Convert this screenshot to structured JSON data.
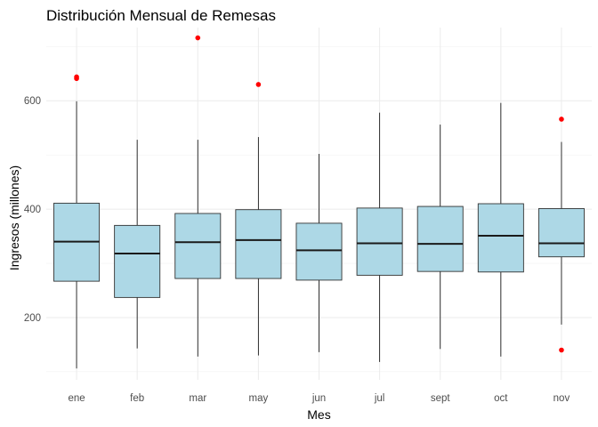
{
  "chart_data": {
    "type": "boxplot",
    "title": "Distribución Mensual de Remesas",
    "xlabel": "Mes",
    "ylabel": "Ingresos (millones)",
    "categories": [
      "ene",
      "feb",
      "mar",
      "may",
      "jun",
      "jul",
      "sept",
      "oct",
      "nov"
    ],
    "ylim": [
      85,
      735
    ],
    "yticks": [
      200,
      400,
      600
    ],
    "grid": true,
    "box_fill": "#ADD8E6",
    "outlier_color": "#FF0000",
    "boxes": [
      {
        "label": "ene",
        "whisker_low": 106,
        "q1": 267,
        "median": 340,
        "q3": 411,
        "whisker_high": 599,
        "outliers": [
          641,
          644
        ]
      },
      {
        "label": "feb",
        "whisker_low": 143,
        "q1": 237,
        "median": 318,
        "q3": 370,
        "whisker_high": 528,
        "outliers": []
      },
      {
        "label": "mar",
        "whisker_low": 128,
        "q1": 272,
        "median": 339,
        "q3": 392,
        "whisker_high": 528,
        "outliers": [
          716
        ]
      },
      {
        "label": "may",
        "whisker_low": 130,
        "q1": 272,
        "median": 343,
        "q3": 399,
        "whisker_high": 533,
        "outliers": [
          630
        ]
      },
      {
        "label": "jun",
        "whisker_low": 136,
        "q1": 269,
        "median": 324,
        "q3": 374,
        "whisker_high": 502,
        "outliers": []
      },
      {
        "label": "jul",
        "whisker_low": 118,
        "q1": 278,
        "median": 337,
        "q3": 402,
        "whisker_high": 578,
        "outliers": []
      },
      {
        "label": "sept",
        "whisker_low": 142,
        "q1": 285,
        "median": 336,
        "q3": 405,
        "whisker_high": 556,
        "outliers": []
      },
      {
        "label": "oct",
        "whisker_low": 128,
        "q1": 284,
        "median": 351,
        "q3": 410,
        "whisker_high": 596,
        "outliers": []
      },
      {
        "label": "nov",
        "whisker_low": 187,
        "q1": 312,
        "median": 337,
        "q3": 401,
        "whisker_high": 524,
        "outliers": [
          140,
          566
        ]
      }
    ]
  }
}
